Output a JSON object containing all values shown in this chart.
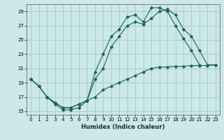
{
  "xlabel": "Humidex (Indice chaleur)",
  "bg_color": "#cce8e8",
  "grid_color": "#aacccc",
  "line_color": "#1a6060",
  "xlim": [
    -0.5,
    23.5
  ],
  "ylim": [
    14.5,
    30.0
  ],
  "xticks": [
    0,
    1,
    2,
    3,
    4,
    5,
    6,
    7,
    8,
    9,
    10,
    11,
    12,
    13,
    14,
    15,
    16,
    17,
    18,
    19,
    20,
    21,
    22,
    23
  ],
  "yticks": [
    15,
    17,
    19,
    21,
    23,
    25,
    27,
    29
  ],
  "line1_x": [
    0,
    1,
    2,
    3,
    4,
    5,
    6,
    7,
    8,
    9,
    10,
    11,
    12,
    13,
    14,
    15,
    16,
    17,
    18,
    19,
    20,
    21
  ],
  "line1_y": [
    19.5,
    18.5,
    17.0,
    16.0,
    15.2,
    15.2,
    15.5,
    16.5,
    20.5,
    23.0,
    25.5,
    26.5,
    28.2,
    28.5,
    27.5,
    29.5,
    29.5,
    29.0,
    27.0,
    25.2,
    23.5,
    21.5
  ],
  "line2_x": [
    0,
    1,
    2,
    3,
    4,
    5,
    6,
    7,
    8,
    9,
    10,
    11,
    12,
    13,
    14,
    15,
    16,
    17,
    18,
    19,
    20,
    21,
    22,
    23
  ],
  "line2_y": [
    19.5,
    18.5,
    17.0,
    16.2,
    15.5,
    15.5,
    16.0,
    16.5,
    19.5,
    21.0,
    24.0,
    25.5,
    27.0,
    27.5,
    27.2,
    28.0,
    29.0,
    29.3,
    28.5,
    26.5,
    25.5,
    23.5,
    21.5,
    21.5
  ],
  "line3_x": [
    0,
    1,
    2,
    3,
    4,
    5,
    6,
    7,
    8,
    9,
    10,
    11,
    12,
    13,
    14,
    15,
    16,
    17,
    18,
    19,
    20,
    21,
    22,
    23
  ],
  "line3_y": [
    19.5,
    18.5,
    17.0,
    16.2,
    15.5,
    15.5,
    16.0,
    16.5,
    17.0,
    18.0,
    18.5,
    19.0,
    19.5,
    20.0,
    20.5,
    21.0,
    21.2,
    21.2,
    21.3,
    21.3,
    21.4,
    21.4,
    21.4,
    21.5
  ]
}
